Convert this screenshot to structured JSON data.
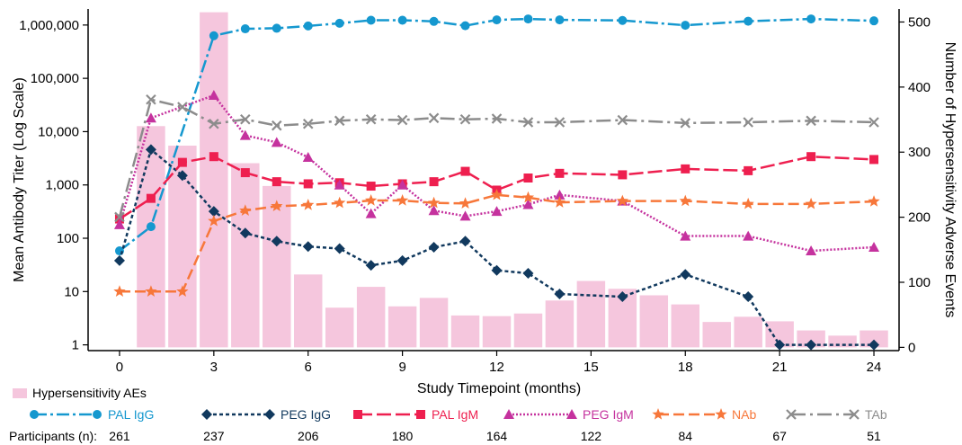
{
  "chart_data": {
    "type": "bar+line",
    "xlabel": "Study Timepoint (months)",
    "ylabel_left": "Mean Antibody Titer (Log Scale)",
    "ylabel_right": "Number of Hypersensitivity Adverse Events",
    "x_ticks": [
      0,
      3,
      6,
      9,
      12,
      15,
      18,
      21,
      24
    ],
    "xlim": [
      -1,
      24.8
    ],
    "y_left_scale": "log",
    "y_left_ticks": [
      {
        "value": 1,
        "label": "1"
      },
      {
        "value": 10,
        "label": "10"
      },
      {
        "value": 100,
        "label": "100"
      },
      {
        "value": 1000,
        "label": "1,000"
      },
      {
        "value": 10000,
        "label": "10,000"
      },
      {
        "value": 100000,
        "label": "100,000"
      },
      {
        "value": 1000000,
        "label": "1,000,000"
      }
    ],
    "y_left_lim": [
      0.78,
      2000000
    ],
    "y_right_ticks": [
      0,
      100,
      200,
      300,
      400,
      500
    ],
    "y_right_lim": [
      -5,
      520
    ],
    "bars": {
      "name": "Hypersensitivity AEs",
      "color": "#f5c6dd",
      "x": [
        1,
        2,
        3,
        4,
        5,
        6,
        7,
        8,
        9,
        10,
        11,
        12,
        13,
        14,
        15,
        16,
        17,
        18,
        19,
        20,
        21,
        22,
        23,
        24
      ],
      "values": [
        340,
        310,
        515,
        283,
        248,
        112,
        61,
        93,
        63,
        76,
        49,
        48,
        52,
        72,
        102,
        90,
        80,
        66,
        39,
        47,
        40,
        26,
        18,
        26
      ]
    },
    "series": [
      {
        "name": "PAL IgG",
        "color": "#1598cf",
        "marker": "circle",
        "dash": "14,4,3,4",
        "x": [
          0,
          1,
          3,
          4,
          5,
          6,
          7,
          8,
          9,
          10,
          11,
          12,
          13,
          14,
          16,
          18,
          20,
          22,
          24
        ],
        "values": [
          58,
          165,
          630000,
          850000,
          870000,
          960000,
          1080000,
          1230000,
          1230000,
          1170000,
          970000,
          1250000,
          1300000,
          1250000,
          1220000,
          990000,
          1180000,
          1300000,
          1200000
        ]
      },
      {
        "name": "PEG IgG",
        "color": "#11395e",
        "marker": "diamond",
        "dash": "4,3",
        "x": [
          0,
          1,
          2,
          3,
          4,
          5,
          6,
          7,
          8,
          9,
          10,
          11,
          12,
          13,
          14,
          16,
          18,
          20,
          21,
          22,
          24
        ],
        "values": [
          38,
          4600,
          1500,
          320,
          125,
          88,
          70,
          64,
          31,
          38,
          68,
          88,
          25,
          22,
          9,
          8,
          21,
          8,
          1,
          1,
          1
        ]
      },
      {
        "name": "PAL IgM",
        "color": "#ee1f4f",
        "marker": "square",
        "dash": "16,5",
        "x": [
          0,
          1,
          2,
          3,
          4,
          5,
          6,
          7,
          8,
          9,
          10,
          11,
          12,
          13,
          14,
          16,
          18,
          20,
          22,
          24
        ],
        "values": [
          230,
          560,
          2650,
          3400,
          1700,
          1150,
          1050,
          1100,
          950,
          1050,
          1150,
          1800,
          800,
          1350,
          1650,
          1550,
          2000,
          1850,
          3400,
          3000
        ]
      },
      {
        "name": "PEG IgM",
        "color": "#c5329e",
        "marker": "triangle",
        "dash": "2,2",
        "x": [
          0,
          1,
          3,
          4,
          5,
          6,
          7,
          8,
          9,
          10,
          11,
          12,
          13,
          14,
          16,
          18,
          20,
          22,
          24
        ],
        "values": [
          180,
          18000,
          48000,
          8500,
          6300,
          3300,
          1000,
          290,
          1000,
          330,
          260,
          320,
          430,
          650,
          500,
          110,
          110,
          58,
          68
        ]
      },
      {
        "name": "NAb",
        "color": "#f7773a",
        "marker": "star",
        "dash": "12,5",
        "x": [
          0,
          1,
          2,
          3,
          4,
          5,
          6,
          7,
          8,
          9,
          10,
          11,
          12,
          13,
          14,
          16,
          18,
          20,
          22,
          24
        ],
        "values": [
          10,
          10,
          10,
          210,
          330,
          400,
          420,
          460,
          510,
          510,
          460,
          450,
          650,
          580,
          470,
          500,
          500,
          440,
          440,
          490
        ]
      },
      {
        "name": "TAb",
        "color": "#8c8c8c",
        "marker": "x",
        "dash": "16,5,3,5",
        "x": [
          0,
          1,
          2,
          3,
          4,
          5,
          6,
          7,
          8,
          9,
          10,
          11,
          12,
          13,
          14,
          16,
          18,
          20,
          22,
          24
        ],
        "values": [
          250,
          40000,
          29000,
          14000,
          17000,
          13000,
          14000,
          16000,
          17000,
          16500,
          18000,
          17000,
          17500,
          15000,
          15000,
          16500,
          14500,
          15000,
          16000,
          15000
        ]
      }
    ],
    "participants": {
      "label": "Participants (n):",
      "entries": [
        {
          "x": 0,
          "value": "261"
        },
        {
          "x": 3,
          "value": "237"
        },
        {
          "x": 6,
          "value": "206"
        },
        {
          "x": 9,
          "value": "180"
        },
        {
          "x": 12,
          "value": "164"
        },
        {
          "x": 15,
          "value": "122"
        },
        {
          "x": 18,
          "value": "84"
        },
        {
          "x": 21,
          "value": "67"
        },
        {
          "x": 24,
          "value": "51"
        }
      ]
    },
    "legend_position": "bottom"
  }
}
